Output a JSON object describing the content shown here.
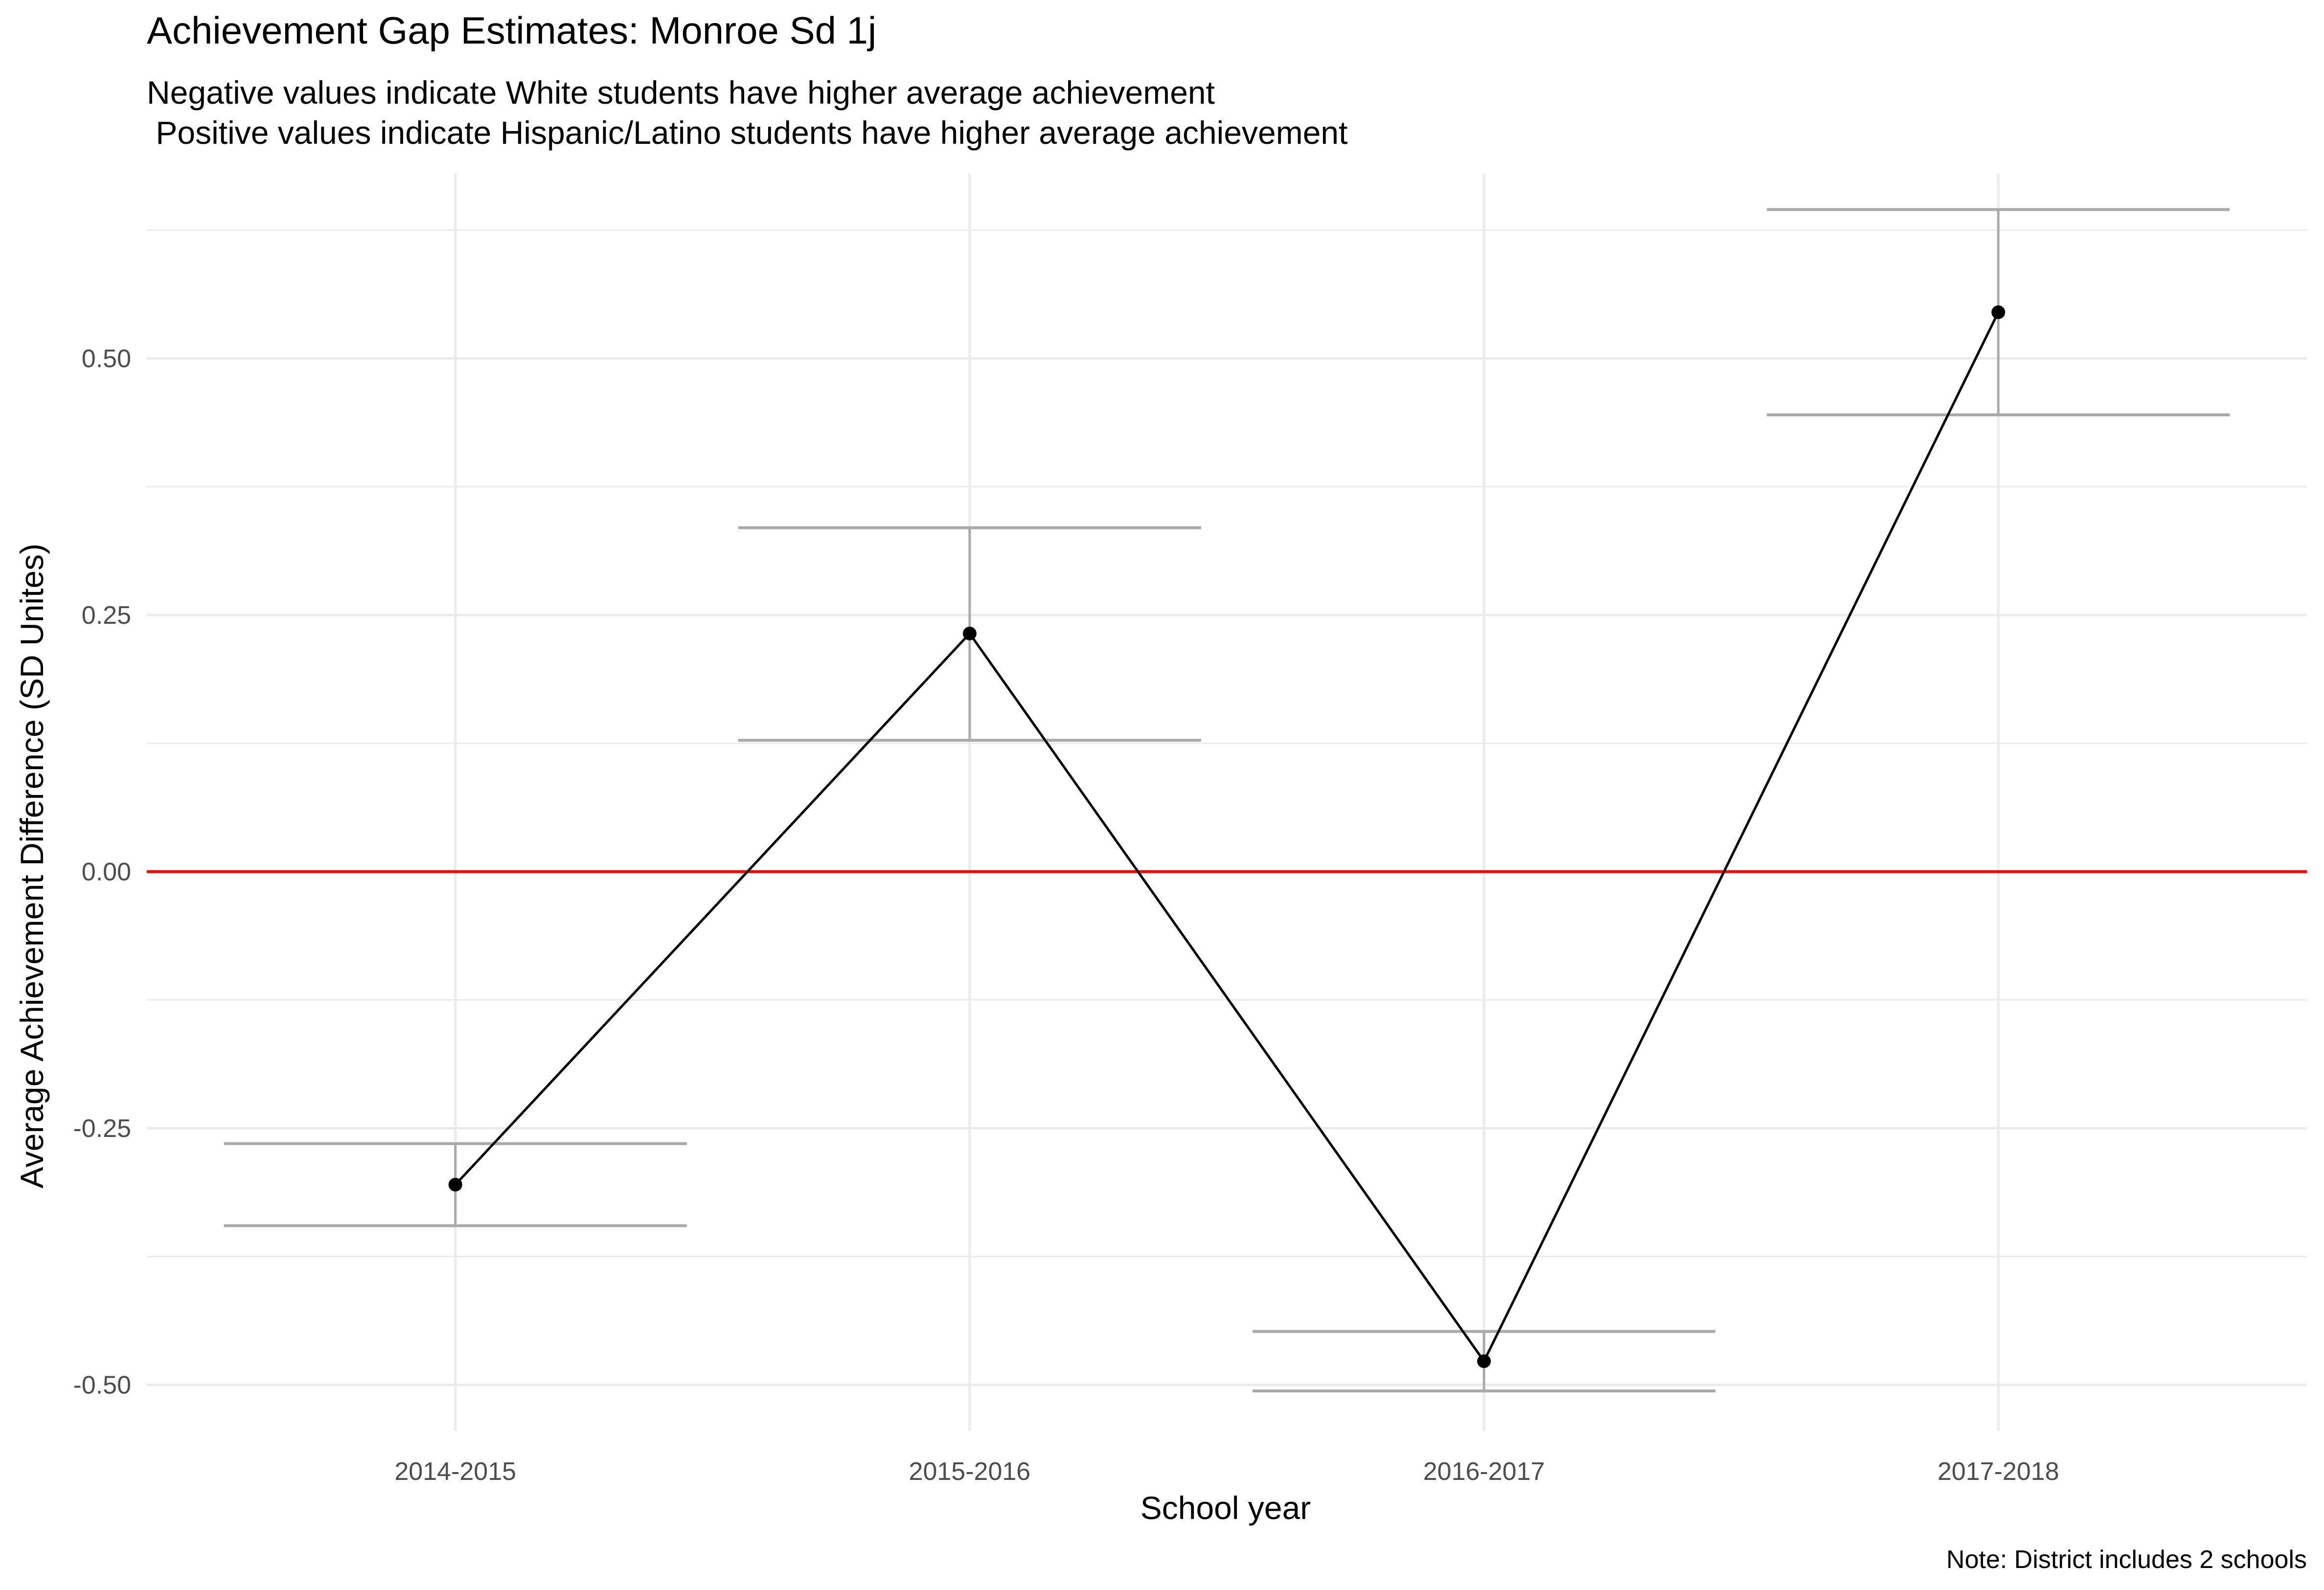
{
  "chart_data": {
    "type": "line",
    "title": "Achievement Gap Estimates: Monroe Sd 1j",
    "subtitle": "Negative values indicate White students have higher average achievement\n Positive values indicate Hispanic/Latino students have higher average achievement",
    "xlabel": "School year",
    "ylabel": "Average Achievement Difference (SD Unites)",
    "caption": "Note: District includes 2 schools",
    "categories": [
      "2014-2015",
      "2015-2016",
      "2016-2017",
      "2017-2018"
    ],
    "values": [
      -0.305,
      0.232,
      -0.477,
      0.545
    ],
    "error_lower": [
      -0.345,
      0.128,
      -0.506,
      0.445
    ],
    "error_upper": [
      -0.265,
      0.335,
      -0.448,
      0.645
    ],
    "y_ticks": [
      -0.5,
      -0.25,
      0.0,
      0.25,
      0.5
    ],
    "y_tick_labels": [
      "-0.50",
      "-0.25",
      "0.00",
      "0.25",
      "0.50"
    ],
    "ylim": [
      -0.545,
      0.68
    ],
    "reference_line": 0,
    "grid": true,
    "colors": {
      "line": "#000000",
      "points": "#000000",
      "error_bars": "#aaaaaa",
      "reference_line": "#ff0000",
      "grid": "#ebebeb"
    }
  }
}
